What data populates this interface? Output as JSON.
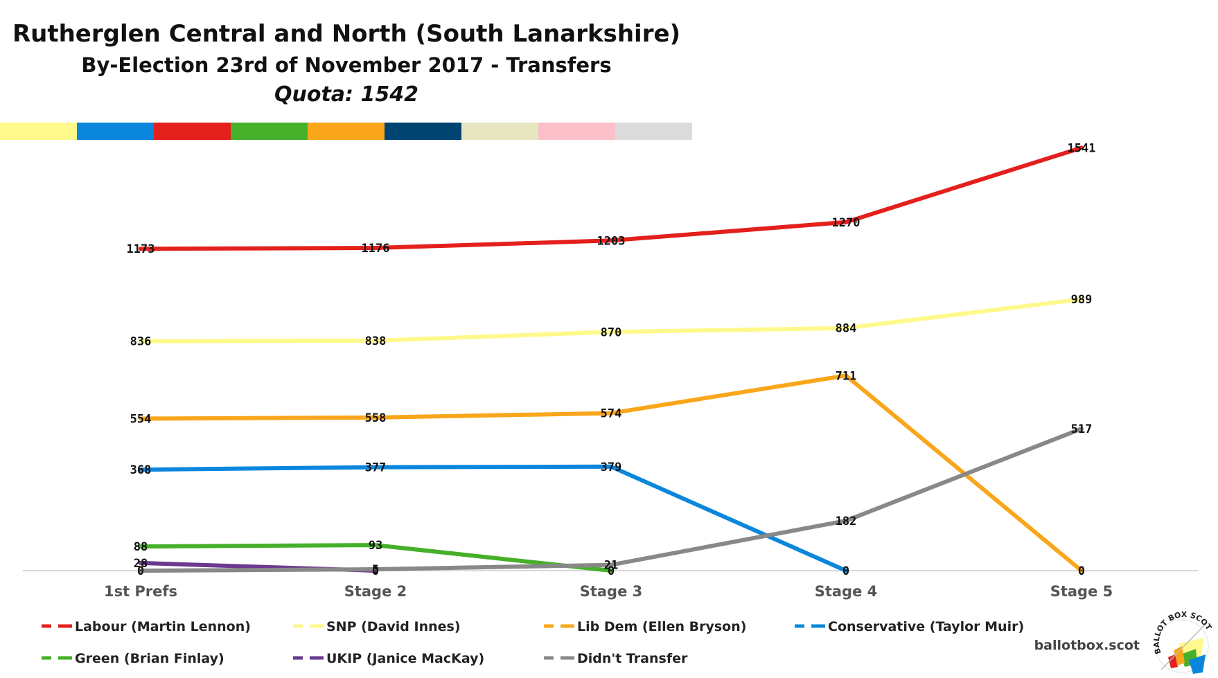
{
  "chart_data": {
    "type": "line",
    "title": "Rutherglen Central and North (South Lanarkshire)",
    "subtitle": "By-Election 23rd of November 2017 - Transfers",
    "quota_text": "Quota: 1542",
    "categories": [
      "1st Prefs",
      "Stage 2",
      "Stage 3",
      "Stage 4",
      "Stage 5"
    ],
    "ylim": [
      0,
      1600
    ],
    "grid": false,
    "legend_position": "bottom",
    "series": [
      {
        "name": "Labour (Martin Lennon)",
        "color": "#e3201c",
        "values": [
          1173,
          1176,
          1203,
          1270,
          1541
        ]
      },
      {
        "name": "SNP (David Innes)",
        "color": "#fff98c",
        "values": [
          836,
          838,
          870,
          884,
          989
        ]
      },
      {
        "name": "Lib Dem (Ellen Bryson)",
        "color": "#f9a61b",
        "values": [
          554,
          558,
          574,
          711,
          0
        ]
      },
      {
        "name": "Conservative (Taylor Muir)",
        "color": "#0a87dc",
        "values": [
          368,
          377,
          379,
          0,
          null
        ]
      },
      {
        "name": "Green (Brian Finlay)",
        "color": "#47b02a",
        "values": [
          88,
          93,
          0,
          null,
          null
        ]
      },
      {
        "name": "UKIP (Janice MacKay)",
        "color": "#6b3a8e",
        "values": [
          28,
          0,
          null,
          null,
          null
        ]
      },
      {
        "name": "Didn't Transfer",
        "color": "#888888",
        "values": [
          0,
          5,
          21,
          182,
          517
        ]
      }
    ]
  },
  "color_bar": [
    "#fff98c",
    "#0a87dc",
    "#e3201c",
    "#47b02a",
    "#f9a61b",
    "#004471",
    "#e8e5c1",
    "#fcc0cb",
    "#dcdcdc"
  ],
  "footer": {
    "site": "ballotbox.scot",
    "logo_text": "BALLOT BOX SCOTLAND",
    "logo_icon": "ballot-box-logo-icon"
  }
}
